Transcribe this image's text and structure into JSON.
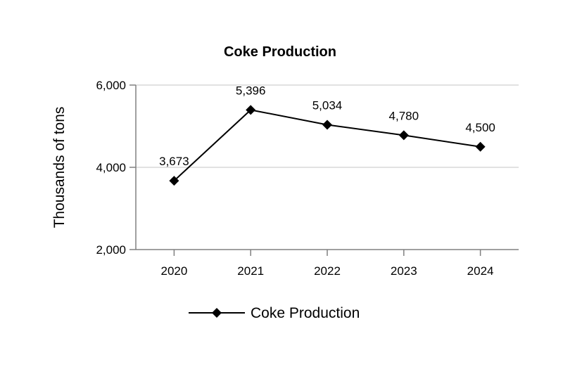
{
  "chart_data": {
    "type": "line",
    "title": "Coke Production",
    "xlabel": "",
    "ylabel": "Thousands of tons",
    "categories": [
      "2020",
      "2021",
      "2022",
      "2023",
      "2024"
    ],
    "series": [
      {
        "name": "Coke Production",
        "values": [
          3673,
          5396,
          5034,
          4780,
          4500
        ],
        "data_labels": [
          "3,673",
          "5,396",
          "5,034",
          "4,780",
          "4,500"
        ],
        "color": "#000000",
        "marker": "diamond"
      }
    ],
    "ylim": [
      2000,
      6000
    ],
    "yticks": [
      2000,
      4000,
      6000
    ],
    "ytick_labels": [
      "2,000",
      "4,000",
      "6,000"
    ],
    "grid": true,
    "legend_position": "bottom",
    "colors": {
      "line": "#000000",
      "grid": "#d9d9d9",
      "axis": "#808080"
    }
  }
}
